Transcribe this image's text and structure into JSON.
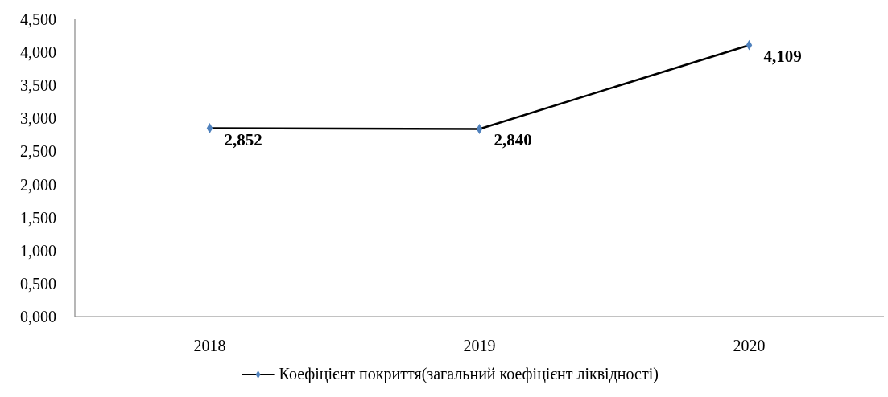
{
  "chart_data": {
    "type": "line",
    "categories": [
      "2018",
      "2019",
      "2020"
    ],
    "series": [
      {
        "name": "Коефіцієнт покриття(загальний коефіцієнт ліквідності)",
        "color": "#000000",
        "colors": [
          "#4f81bd",
          "#4f81bd",
          "#4f81bd"
        ],
        "values": [
          2.852,
          2.84,
          4.109
        ],
        "value_labels": [
          "2,852",
          "2,840",
          "4,109"
        ]
      }
    ],
    "ylim": [
      0,
      4.5
    ],
    "yticks": [
      {
        "value": 0,
        "label": "0,000"
      },
      {
        "value": 0.5,
        "label": "0,500"
      },
      {
        "value": 1,
        "label": "1,000"
      },
      {
        "value": 1.5,
        "label": "1,500"
      },
      {
        "value": 2,
        "label": "2,000"
      },
      {
        "value": 2.5,
        "label": "2,500"
      },
      {
        "value": 3,
        "label": "3,000"
      },
      {
        "value": 3.5,
        "label": "3,500"
      },
      {
        "value": 4,
        "label": "4,000"
      },
      {
        "value": 4.5,
        "label": "4,500"
      }
    ],
    "legend": "bottom",
    "marker": "diamond",
    "line_style": "solid"
  }
}
